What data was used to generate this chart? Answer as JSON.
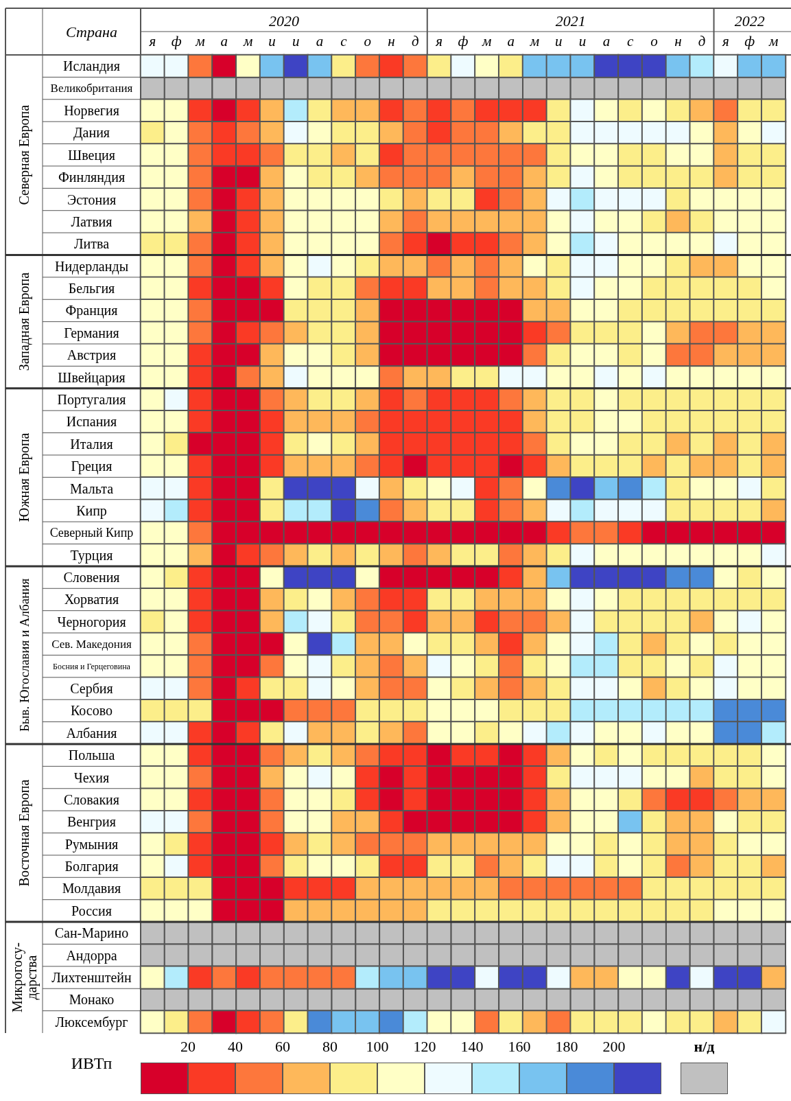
{
  "chart_data": {
    "type": "heatmap",
    "ylabel": "Страна",
    "clabel": "ИВТп",
    "categories": [
      "я",
      "ф",
      "м",
      "а",
      "м",
      "и",
      "и",
      "а",
      "с",
      "о",
      "н",
      "д",
      "я",
      "ф",
      "м",
      "а",
      "м",
      "и",
      "и",
      "а",
      "с",
      "о",
      "н",
      "д",
      "я",
      "ф",
      "м"
    ],
    "y_categories": [
      "Исландия",
      "Великобритания",
      "Норвегия",
      "Дания",
      "Швеция",
      "Финляндия",
      "Эстония",
      "Латвия",
      "Литва",
      "Нидерланды",
      "Бельгия",
      "Франция",
      "Германия",
      "Австрия",
      "Швейцария",
      "Португалия",
      "Испания",
      "Италия",
      "Греция",
      "Мальта",
      "Кипр",
      "Северный Кипр",
      "Турция",
      "Словения",
      "Хорватия",
      "Черногория",
      "Сев. Македония",
      "Босния и Герцеговина",
      "Сербия",
      "Косово",
      "Албания",
      "Польша",
      "Чехия",
      "Словакия",
      "Венгрия",
      "Румыния",
      "Болгария",
      "Молдавия",
      "Россия",
      "Сан-Марино",
      "Андорра",
      "Лихтенштейн",
      "Монако",
      "Люксембург"
    ],
    "cells": [
      [
        130,
        130,
        50,
        10,
        110,
        170,
        210,
        170,
        90,
        50,
        30,
        50,
        90,
        130,
        110,
        90,
        170,
        170,
        170,
        210,
        210,
        210,
        170,
        150,
        130,
        170,
        170
      ],
      [
        null,
        null,
        null,
        null,
        null,
        null,
        null,
        null,
        null,
        null,
        null,
        null,
        null,
        null,
        null,
        null,
        null,
        null,
        null,
        null,
        null,
        null,
        null,
        null,
        null,
        null,
        null
      ],
      [
        110,
        110,
        30,
        10,
        30,
        70,
        150,
        90,
        70,
        70,
        30,
        50,
        30,
        50,
        30,
        30,
        30,
        90,
        130,
        110,
        90,
        110,
        90,
        70,
        50,
        90,
        90
      ],
      [
        90,
        110,
        50,
        30,
        50,
        70,
        130,
        110,
        90,
        90,
        70,
        50,
        30,
        50,
        50,
        70,
        90,
        90,
        130,
        130,
        130,
        130,
        130,
        110,
        70,
        110,
        130
      ],
      [
        110,
        110,
        50,
        30,
        30,
        50,
        90,
        90,
        70,
        90,
        30,
        50,
        50,
        50,
        50,
        50,
        50,
        90,
        110,
        110,
        90,
        90,
        110,
        110,
        70,
        90,
        90
      ],
      [
        110,
        110,
        50,
        10,
        10,
        70,
        110,
        90,
        90,
        70,
        50,
        50,
        50,
        70,
        50,
        50,
        70,
        90,
        130,
        110,
        90,
        90,
        90,
        90,
        70,
        90,
        90
      ],
      [
        110,
        110,
        50,
        10,
        30,
        70,
        110,
        110,
        110,
        110,
        90,
        70,
        90,
        90,
        30,
        50,
        70,
        130,
        150,
        130,
        130,
        130,
        90,
        110,
        110,
        110,
        110
      ],
      [
        110,
        110,
        70,
        10,
        30,
        70,
        110,
        110,
        110,
        110,
        70,
        50,
        70,
        70,
        70,
        70,
        70,
        110,
        130,
        110,
        110,
        90,
        70,
        90,
        110,
        110,
        110
      ],
      [
        90,
        90,
        50,
        10,
        30,
        70,
        110,
        110,
        110,
        110,
        50,
        30,
        10,
        30,
        30,
        50,
        70,
        110,
        150,
        130,
        110,
        110,
        110,
        110,
        130,
        110,
        110
      ],
      [
        110,
        110,
        50,
        10,
        30,
        70,
        110,
        130,
        110,
        90,
        70,
        70,
        50,
        70,
        50,
        70,
        110,
        90,
        130,
        130,
        110,
        110,
        90,
        70,
        70,
        110,
        110
      ],
      [
        110,
        110,
        30,
        10,
        10,
        30,
        110,
        90,
        90,
        50,
        30,
        30,
        70,
        70,
        50,
        70,
        70,
        90,
        130,
        110,
        110,
        90,
        90,
        90,
        90,
        90,
        110
      ],
      [
        110,
        110,
        50,
        10,
        10,
        10,
        90,
        90,
        90,
        70,
        10,
        10,
        10,
        10,
        10,
        10,
        70,
        70,
        110,
        110,
        90,
        90,
        90,
        90,
        90,
        90,
        90
      ],
      [
        110,
        110,
        50,
        10,
        30,
        50,
        70,
        90,
        90,
        70,
        10,
        10,
        10,
        10,
        10,
        10,
        30,
        50,
        90,
        90,
        90,
        110,
        70,
        50,
        50,
        70,
        70
      ],
      [
        110,
        110,
        30,
        10,
        10,
        70,
        110,
        110,
        90,
        70,
        10,
        10,
        10,
        10,
        10,
        10,
        50,
        90,
        110,
        110,
        90,
        110,
        50,
        50,
        70,
        70,
        70
      ],
      [
        110,
        110,
        30,
        10,
        50,
        70,
        130,
        110,
        110,
        110,
        50,
        70,
        70,
        90,
        90,
        130,
        130,
        110,
        110,
        130,
        110,
        130,
        110,
        110,
        110,
        110,
        110
      ],
      [
        110,
        130,
        30,
        10,
        10,
        50,
        70,
        90,
        90,
        70,
        30,
        50,
        30,
        30,
        30,
        50,
        70,
        90,
        90,
        110,
        90,
        90,
        90,
        90,
        90,
        90,
        90
      ],
      [
        110,
        110,
        30,
        10,
        10,
        30,
        70,
        70,
        70,
        50,
        30,
        30,
        30,
        30,
        30,
        30,
        70,
        90,
        90,
        110,
        110,
        90,
        90,
        90,
        90,
        90,
        90
      ],
      [
        110,
        90,
        10,
        10,
        10,
        30,
        90,
        110,
        90,
        70,
        30,
        30,
        30,
        30,
        30,
        30,
        50,
        90,
        110,
        110,
        90,
        90,
        70,
        90,
        70,
        90,
        70
      ],
      [
        110,
        110,
        30,
        10,
        10,
        30,
        70,
        70,
        70,
        50,
        30,
        10,
        30,
        30,
        30,
        10,
        30,
        70,
        90,
        90,
        90,
        70,
        90,
        70,
        70,
        90,
        70
      ],
      [
        130,
        130,
        30,
        10,
        10,
        90,
        210,
        210,
        210,
        130,
        70,
        90,
        110,
        130,
        30,
        50,
        110,
        190,
        210,
        170,
        190,
        150,
        90,
        110,
        110,
        130,
        90
      ],
      [
        130,
        150,
        30,
        10,
        10,
        90,
        150,
        150,
        210,
        190,
        50,
        70,
        90,
        90,
        30,
        50,
        70,
        130,
        150,
        130,
        130,
        130,
        90,
        90,
        90,
        90,
        70
      ],
      [
        110,
        110,
        50,
        10,
        10,
        10,
        10,
        10,
        10,
        10,
        10,
        10,
        10,
        10,
        10,
        10,
        10,
        30,
        50,
        50,
        30,
        10,
        10,
        10,
        10,
        10,
        10
      ],
      [
        110,
        110,
        70,
        10,
        30,
        50,
        70,
        90,
        70,
        90,
        70,
        50,
        70,
        90,
        90,
        50,
        70,
        90,
        130,
        110,
        110,
        110,
        110,
        110,
        110,
        110,
        130
      ],
      [
        110,
        90,
        30,
        10,
        10,
        110,
        210,
        210,
        210,
        110,
        10,
        10,
        10,
        10,
        10,
        30,
        70,
        170,
        210,
        210,
        210,
        210,
        190,
        190,
        110,
        90,
        110
      ],
      [
        110,
        110,
        30,
        10,
        10,
        70,
        90,
        110,
        70,
        50,
        30,
        30,
        90,
        90,
        70,
        70,
        70,
        110,
        130,
        110,
        90,
        90,
        90,
        90,
        90,
        90,
        90
      ],
      [
        90,
        110,
        30,
        10,
        10,
        70,
        150,
        130,
        90,
        50,
        50,
        30,
        70,
        70,
        30,
        50,
        50,
        70,
        130,
        90,
        90,
        90,
        90,
        70,
        110,
        130,
        110
      ],
      [
        110,
        110,
        50,
        10,
        10,
        10,
        110,
        210,
        150,
        70,
        70,
        110,
        90,
        90,
        70,
        30,
        70,
        110,
        130,
        150,
        90,
        70,
        90,
        110,
        90,
        110,
        110
      ],
      [
        110,
        110,
        50,
        10,
        10,
        50,
        110,
        130,
        90,
        70,
        50,
        70,
        130,
        110,
        90,
        50,
        90,
        110,
        150,
        150,
        90,
        90,
        110,
        90,
        130,
        110,
        110
      ],
      [
        130,
        130,
        50,
        10,
        30,
        90,
        90,
        130,
        110,
        70,
        50,
        50,
        110,
        90,
        70,
        50,
        70,
        90,
        130,
        130,
        110,
        70,
        90,
        110,
        130,
        110,
        110
      ],
      [
        90,
        90,
        90,
        10,
        10,
        10,
        50,
        50,
        50,
        90,
        90,
        90,
        110,
        110,
        110,
        90,
        90,
        90,
        150,
        150,
        150,
        150,
        150,
        150,
        190,
        190,
        190
      ],
      [
        130,
        130,
        30,
        10,
        30,
        90,
        130,
        70,
        70,
        90,
        70,
        50,
        110,
        110,
        90,
        110,
        130,
        150,
        130,
        110,
        110,
        130,
        110,
        110,
        190,
        190,
        150
      ],
      [
        110,
        110,
        30,
        10,
        10,
        50,
        70,
        90,
        70,
        50,
        30,
        30,
        10,
        30,
        30,
        10,
        30,
        70,
        110,
        90,
        110,
        90,
        90,
        90,
        90,
        90,
        110
      ],
      [
        110,
        110,
        50,
        10,
        10,
        70,
        110,
        130,
        110,
        30,
        10,
        30,
        10,
        10,
        10,
        10,
        30,
        90,
        130,
        130,
        130,
        110,
        110,
        70,
        90,
        90,
        110
      ],
      [
        110,
        110,
        30,
        10,
        10,
        50,
        110,
        110,
        90,
        30,
        10,
        30,
        10,
        10,
        10,
        10,
        30,
        70,
        110,
        110,
        90,
        50,
        30,
        30,
        50,
        70,
        70
      ],
      [
        130,
        130,
        50,
        10,
        10,
        50,
        110,
        110,
        70,
        70,
        30,
        10,
        10,
        10,
        10,
        10,
        30,
        70,
        110,
        110,
        170,
        90,
        70,
        70,
        110,
        90,
        90
      ],
      [
        110,
        90,
        30,
        10,
        10,
        30,
        70,
        90,
        70,
        50,
        50,
        50,
        70,
        70,
        70,
        70,
        70,
        110,
        110,
        90,
        110,
        90,
        70,
        70,
        90,
        110,
        110
      ],
      [
        110,
        130,
        30,
        10,
        10,
        50,
        90,
        110,
        110,
        90,
        30,
        30,
        90,
        90,
        50,
        70,
        90,
        130,
        130,
        90,
        110,
        90,
        50,
        70,
        90,
        90,
        70
      ],
      [
        90,
        90,
        90,
        10,
        10,
        10,
        30,
        30,
        30,
        70,
        70,
        70,
        70,
        70,
        70,
        50,
        50,
        50,
        50,
        50,
        50,
        90,
        90,
        90,
        90,
        90,
        90
      ],
      [
        110,
        110,
        110,
        10,
        10,
        10,
        70,
        70,
        70,
        70,
        70,
        70,
        90,
        90,
        90,
        90,
        90,
        90,
        90,
        90,
        90,
        90,
        90,
        90,
        110,
        110,
        110
      ],
      [
        null,
        null,
        null,
        null,
        null,
        null,
        null,
        null,
        null,
        null,
        null,
        null,
        null,
        null,
        null,
        null,
        null,
        null,
        null,
        null,
        null,
        null,
        null,
        null,
        null,
        null,
        null
      ],
      [
        null,
        null,
        null,
        null,
        null,
        null,
        null,
        null,
        null,
        null,
        null,
        null,
        null,
        null,
        null,
        null,
        null,
        null,
        null,
        null,
        null,
        null,
        null,
        null,
        null,
        null,
        null
      ],
      [
        110,
        150,
        30,
        50,
        30,
        50,
        50,
        50,
        50,
        150,
        170,
        170,
        210,
        210,
        130,
        210,
        210,
        130,
        70,
        70,
        110,
        110,
        210,
        130,
        210,
        210,
        70
      ],
      [
        null,
        null,
        null,
        null,
        null,
        null,
        null,
        null,
        null,
        null,
        null,
        null,
        null,
        null,
        null,
        null,
        null,
        null,
        null,
        null,
        null,
        null,
        null,
        null,
        null,
        null,
        null
      ],
      [
        110,
        90,
        50,
        10,
        30,
        50,
        90,
        190,
        170,
        170,
        190,
        150,
        110,
        110,
        50,
        90,
        70,
        50,
        90,
        90,
        90,
        110,
        90,
        90,
        70,
        90,
        130
      ]
    ],
    "clim": [
      0,
      220
    ],
    "grid": true,
    "cticks": [
      20,
      40,
      60,
      80,
      100,
      120,
      140,
      160,
      180,
      200
    ],
    "colors": [
      "#d7002a",
      "#fa3a25",
      "#fd773c",
      "#feb85a",
      "#fcee8a",
      "#ffffc6",
      "#eefbff",
      "#b3ecfc",
      "#78c3f0",
      "#4a8ad8",
      "#3e44c4",
      "#c0c0c0"
    ],
    "annotations": [
      "2020",
      "2021",
      "2022",
      "н/д",
      "Северная Европа",
      "Западная Европа",
      "Южная Европа",
      "Быв. Югославия и Албания",
      "Восточная Европа",
      "Микрогосу-\nдарства"
    ]
  }
}
